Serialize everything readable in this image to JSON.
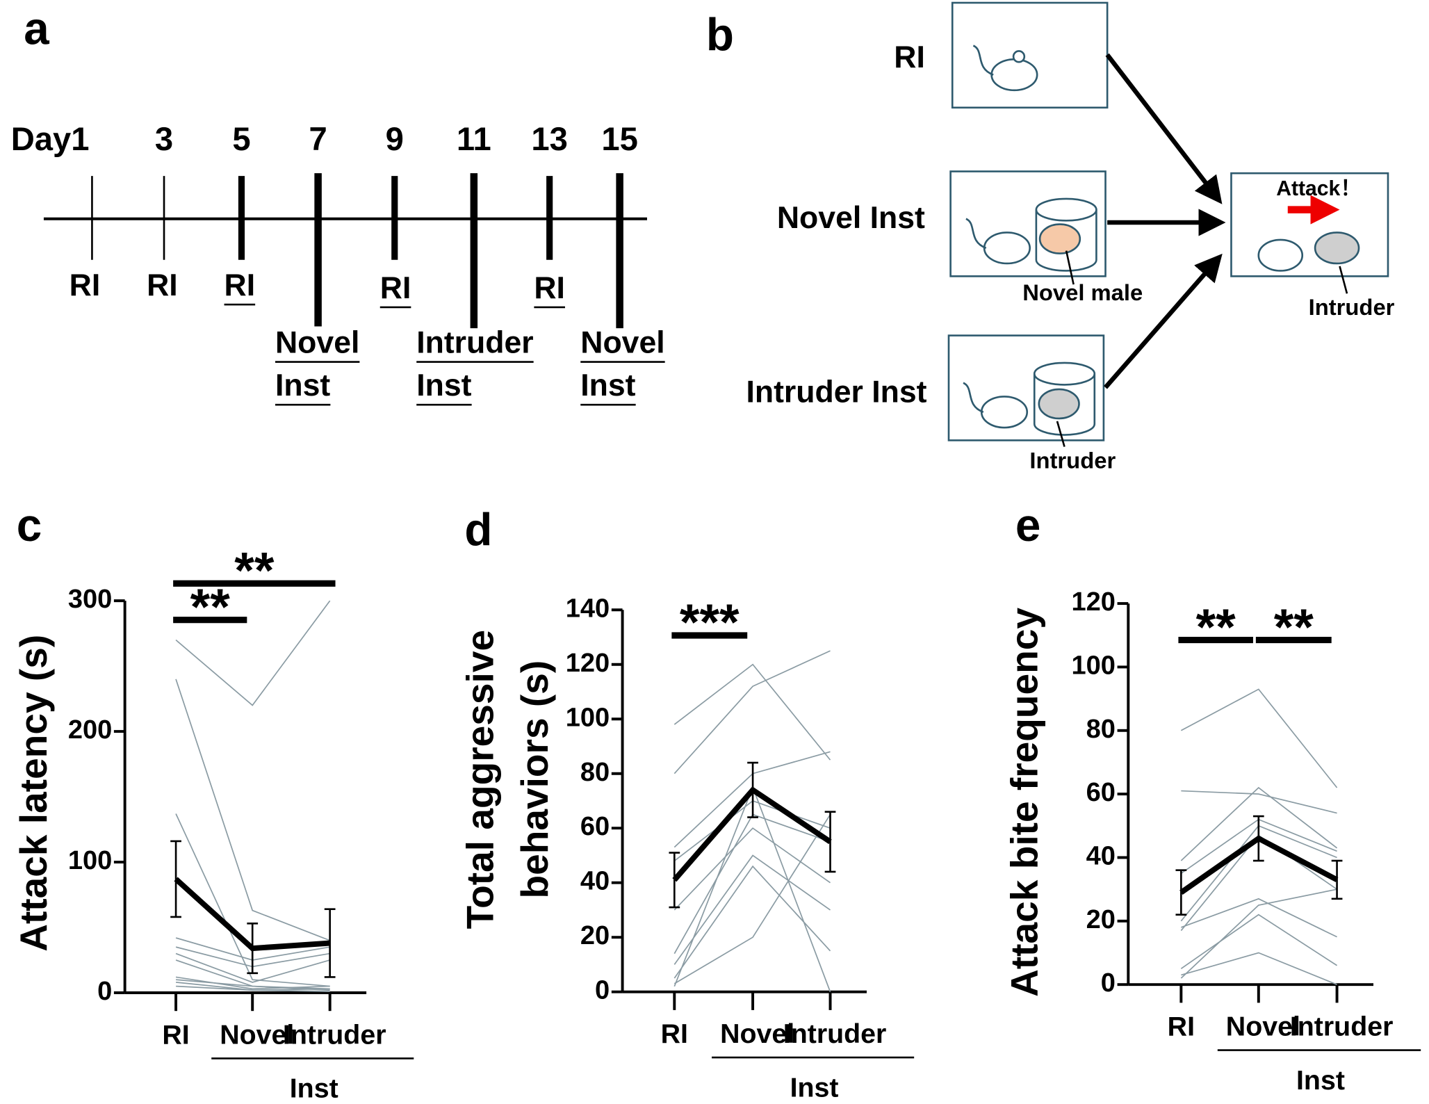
{
  "panel_labels": [
    "a",
    "b",
    "c",
    "d",
    "e"
  ],
  "timeline": {
    "days": [
      "Day1",
      "3",
      "5",
      "7",
      "9",
      "11",
      "13",
      "15"
    ],
    "events": [
      [
        "RI"
      ],
      [
        "RI"
      ],
      [
        "RI"
      ],
      [
        "Novel",
        "Inst"
      ],
      [
        "RI"
      ],
      [
        "Intruder",
        "Inst"
      ],
      [
        "RI"
      ],
      [
        "Novel",
        "Inst"
      ]
    ]
  },
  "diagram": {
    "conditions": [
      "RI",
      "Novel Inst",
      "Intruder Inst"
    ],
    "novel_label": "Novel male",
    "intruder_label": "Intruder",
    "attack_label": "Attack！",
    "result_intruder_label": "Intruder"
  },
  "chart_data": [
    {
      "type": "line",
      "ylabel": [
        "Attack latency (s)"
      ],
      "categories": [
        "RI",
        "Novel",
        "Intruder"
      ],
      "group_label": "Inst",
      "ylim": [
        0,
        300
      ],
      "yticks": [
        0,
        100,
        200,
        300
      ],
      "mean": {
        "color": "#000000",
        "values": [
          87,
          34,
          38
        ],
        "errors": [
          29,
          19,
          26
        ]
      },
      "individuals": {
        "color": "#8a9ba3",
        "series": [
          [
            270,
            220,
            300
          ],
          [
            240,
            63,
            40
          ],
          [
            137,
            10,
            5
          ],
          [
            42,
            25,
            35
          ],
          [
            35,
            20,
            30
          ],
          [
            30,
            8,
            25
          ],
          [
            25,
            5,
            3
          ],
          [
            12,
            3,
            5
          ],
          [
            10,
            5,
            2
          ],
          [
            8,
            2,
            1
          ],
          [
            5,
            2,
            3
          ]
        ]
      },
      "significance": [
        {
          "label": "**",
          "from": "RI",
          "to": "Novel"
        },
        {
          "label": "**",
          "from": "RI",
          "to": "Intruder"
        }
      ]
    },
    {
      "type": "line",
      "ylabel": [
        "Total aggressive",
        "behaviors (s)"
      ],
      "categories": [
        "RI",
        "Novel",
        "Intruder"
      ],
      "group_label": "Inst",
      "ylim": [
        0,
        140
      ],
      "yticks": [
        0,
        20,
        40,
        60,
        80,
        100,
        120,
        140
      ],
      "mean": {
        "color": "#000000",
        "values": [
          41,
          74,
          55
        ],
        "errors": [
          10,
          10,
          11
        ]
      },
      "individuals": {
        "color": "#8a9ba3",
        "series": [
          [
            98,
            120,
            85
          ],
          [
            80,
            112,
            125
          ],
          [
            53,
            80,
            88
          ],
          [
            48,
            70,
            60
          ],
          [
            30,
            60,
            40
          ],
          [
            14,
            65,
            55
          ],
          [
            10,
            50,
            30
          ],
          [
            5,
            46,
            15
          ],
          [
            3,
            20,
            65
          ],
          [
            2,
            75,
            0
          ]
        ]
      },
      "significance": [
        {
          "label": "***",
          "from": "RI",
          "to": "Novel"
        }
      ]
    },
    {
      "type": "line",
      "ylabel": [
        "Attack bite frequency"
      ],
      "categories": [
        "RI",
        "Novel",
        "Intruder"
      ],
      "group_label": "Inst",
      "ylim": [
        0,
        120
      ],
      "yticks": [
        0,
        20,
        40,
        60,
        80,
        100,
        120
      ],
      "mean": {
        "color": "#000000",
        "values": [
          29,
          46,
          33
        ],
        "errors": [
          7,
          7,
          6
        ]
      },
      "individuals": {
        "color": "#8a9ba3",
        "series": [
          [
            80,
            93,
            62
          ],
          [
            61,
            60,
            54
          ],
          [
            39,
            62,
            43
          ],
          [
            35,
            52,
            42
          ],
          [
            20,
            50,
            40
          ],
          [
            17,
            47,
            30
          ],
          [
            18,
            27,
            15
          ],
          [
            5,
            22,
            6
          ],
          [
            3,
            10,
            0
          ],
          [
            2,
            25,
            30
          ]
        ]
      },
      "significance": [
        {
          "label": "**",
          "from": "RI",
          "to": "Novel"
        },
        {
          "label": "**",
          "from": "Novel",
          "to": "Intruder"
        }
      ]
    }
  ]
}
